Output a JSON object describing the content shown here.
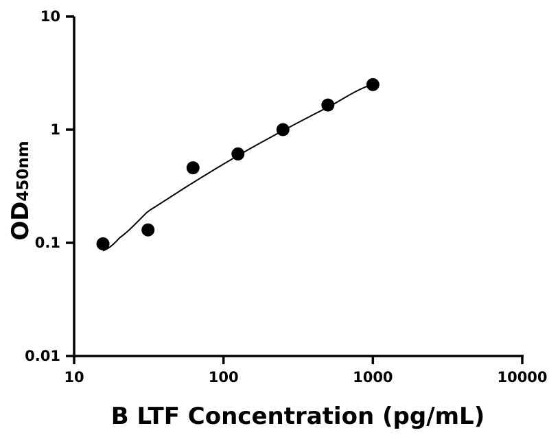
{
  "chart_data": {
    "type": "scatter",
    "xscale": "log",
    "yscale": "log",
    "xlim": [
      10,
      10000
    ],
    "ylim": [
      0.01,
      10
    ],
    "grid": false,
    "xlabel": "B LTF Concentration (pg/mL)",
    "ylabel": {
      "main": "OD",
      "subscript": "450nm"
    },
    "x_ticks": [
      {
        "value": 10,
        "label": "10"
      },
      {
        "value": 100,
        "label": "100"
      },
      {
        "value": 1000,
        "label": "1000"
      },
      {
        "value": 10000,
        "label": "10000"
      }
    ],
    "y_ticks": [
      {
        "value": 0.01,
        "label": "0.01"
      },
      {
        "value": 0.1,
        "label": "0.1"
      },
      {
        "value": 1,
        "label": "1"
      },
      {
        "value": 10,
        "label": "10"
      }
    ],
    "series": [
      {
        "points": [
          {
            "x": 15.6,
            "y": 0.098
          },
          {
            "x": 31.25,
            "y": 0.13
          },
          {
            "x": 62.5,
            "y": 0.46
          },
          {
            "x": 125,
            "y": 0.61
          },
          {
            "x": 250,
            "y": 1.0
          },
          {
            "x": 500,
            "y": 1.65
          },
          {
            "x": 1000,
            "y": 2.5
          }
        ],
        "marker": "circle",
        "color": "#000000"
      }
    ],
    "fit_curve": {
      "points": [
        {
          "x": 15.6,
          "y": 0.085
        },
        {
          "x": 20,
          "y": 0.11
        },
        {
          "x": 31.25,
          "y": 0.19
        },
        {
          "x": 62.5,
          "y": 0.34
        },
        {
          "x": 125,
          "y": 0.59
        },
        {
          "x": 250,
          "y": 0.98
        },
        {
          "x": 500,
          "y": 1.58
        },
        {
          "x": 1000,
          "y": 2.5
        }
      ],
      "color": "#000000"
    }
  }
}
